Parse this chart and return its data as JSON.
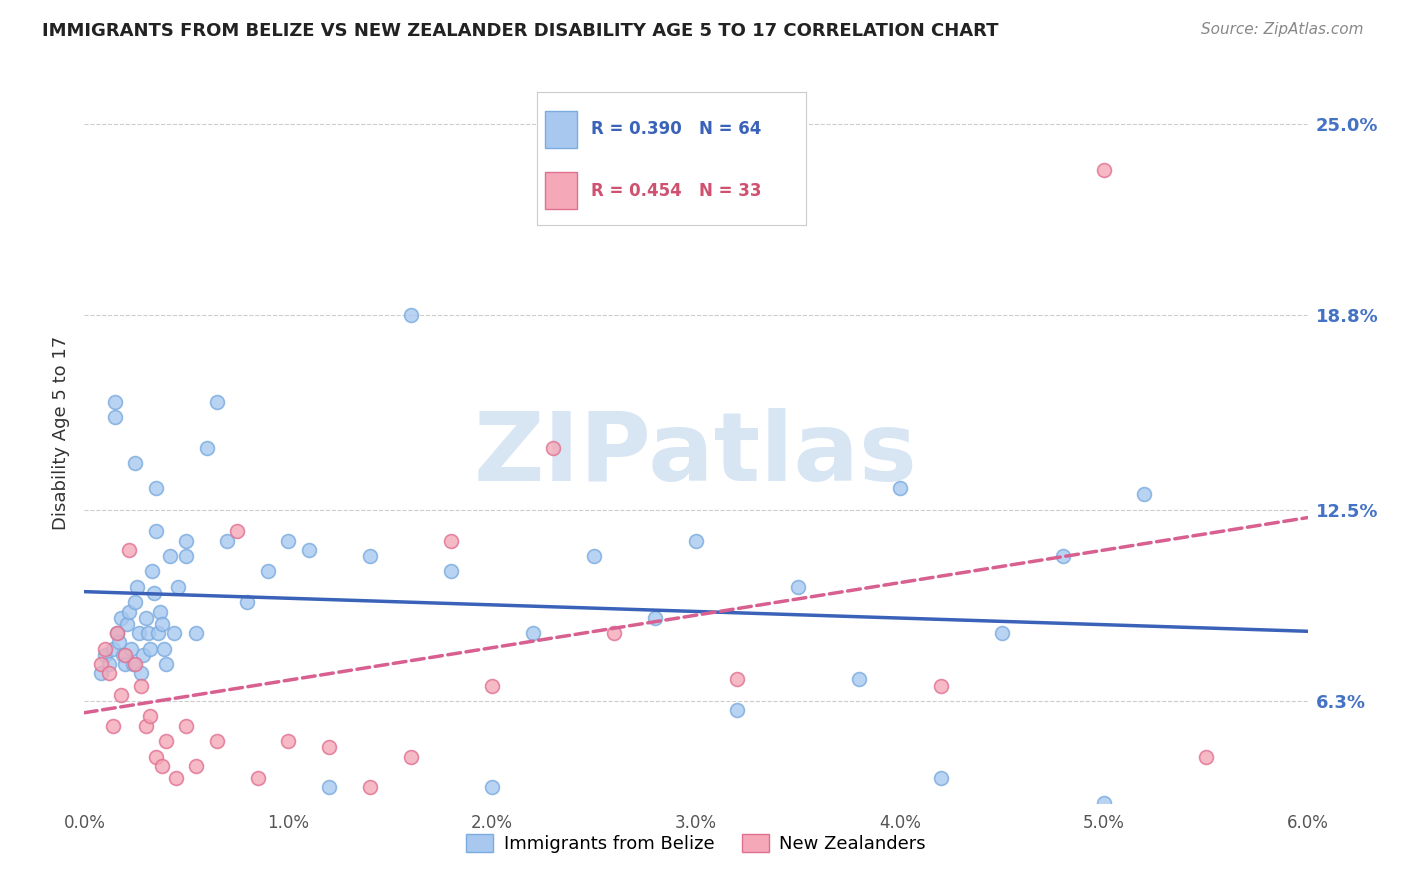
{
  "title": "IMMIGRANTS FROM BELIZE VS NEW ZEALANDER DISABILITY AGE 5 TO 17 CORRELATION CHART",
  "source": "Source: ZipAtlas.com",
  "ylabel": "Disability Age 5 to 17",
  "y_ticks": [
    "6.3%",
    "12.5%",
    "18.8%",
    "25.0%"
  ],
  "y_tick_vals": [
    6.3,
    12.5,
    18.8,
    25.0
  ],
  "x_range": [
    0.0,
    6.0
  ],
  "y_range": [
    3.0,
    27.0
  ],
  "legend_blue_r": "R = 0.390",
  "legend_blue_n": "N = 64",
  "legend_pink_r": "R = 0.454",
  "legend_pink_n": "N = 33",
  "legend1_label": "Immigrants from Belize",
  "legend2_label": "New Zealanders",
  "blue_color": "#A8C8F0",
  "pink_color": "#F4A8B8",
  "blue_edge_color": "#7AAADE",
  "pink_edge_color": "#E07090",
  "blue_line_color": "#3A62B8",
  "pink_line_color": "#D86090",
  "watermark_color": "#C8DCF0",
  "blue_scatter_x": [
    0.08,
    0.1,
    0.12,
    0.14,
    0.15,
    0.16,
    0.17,
    0.18,
    0.19,
    0.2,
    0.21,
    0.22,
    0.23,
    0.24,
    0.25,
    0.26,
    0.27,
    0.28,
    0.29,
    0.3,
    0.31,
    0.32,
    0.33,
    0.34,
    0.35,
    0.36,
    0.37,
    0.38,
    0.39,
    0.4,
    0.42,
    0.44,
    0.46,
    0.5,
    0.55,
    0.6,
    0.65,
    0.7,
    0.8,
    0.9,
    1.0,
    1.1,
    1.2,
    1.4,
    1.6,
    1.8,
    2.0,
    2.2,
    2.5,
    2.8,
    3.0,
    3.2,
    3.5,
    3.8,
    4.0,
    4.2,
    4.5,
    4.8,
    5.0,
    5.2,
    0.15,
    0.25,
    0.35,
    0.5
  ],
  "blue_scatter_y": [
    7.2,
    7.8,
    7.5,
    8.0,
    16.0,
    8.5,
    8.2,
    9.0,
    7.8,
    7.5,
    8.8,
    9.2,
    8.0,
    7.5,
    9.5,
    10.0,
    8.5,
    7.2,
    7.8,
    9.0,
    8.5,
    8.0,
    10.5,
    9.8,
    11.8,
    8.5,
    9.2,
    8.8,
    8.0,
    7.5,
    11.0,
    8.5,
    10.0,
    11.5,
    8.5,
    14.5,
    16.0,
    11.5,
    9.5,
    10.5,
    11.5,
    11.2,
    3.5,
    11.0,
    18.8,
    10.5,
    3.5,
    8.5,
    11.0,
    9.0,
    11.5,
    6.0,
    10.0,
    7.0,
    13.2,
    3.8,
    8.5,
    11.0,
    3.0,
    13.0,
    15.5,
    14.0,
    13.2,
    11.0
  ],
  "pink_scatter_x": [
    0.08,
    0.1,
    0.12,
    0.14,
    0.16,
    0.18,
    0.2,
    0.22,
    0.25,
    0.28,
    0.3,
    0.32,
    0.35,
    0.38,
    0.4,
    0.45,
    0.5,
    0.55,
    0.65,
    0.75,
    0.85,
    1.0,
    1.2,
    1.4,
    1.6,
    1.8,
    2.0,
    2.3,
    2.6,
    3.2,
    4.2,
    5.0,
    5.5
  ],
  "pink_scatter_y": [
    7.5,
    8.0,
    7.2,
    5.5,
    8.5,
    6.5,
    7.8,
    11.2,
    7.5,
    6.8,
    5.5,
    5.8,
    4.5,
    4.2,
    5.0,
    3.8,
    5.5,
    4.2,
    5.0,
    11.8,
    3.8,
    5.0,
    4.8,
    3.5,
    4.5,
    11.5,
    6.8,
    14.5,
    8.5,
    7.0,
    6.8,
    23.5,
    4.5
  ]
}
